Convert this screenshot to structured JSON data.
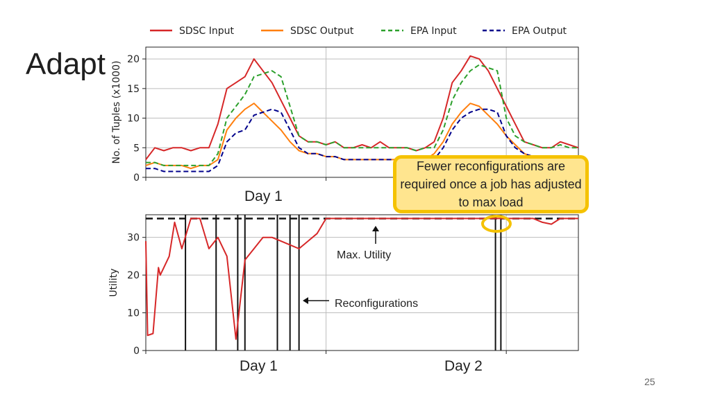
{
  "slide": {
    "title": "Adapt",
    "callout": "Fewer reconfigurations are required once a job has adjusted to max load",
    "top_day_label": "Day 1",
    "bottom_day_labels": [
      "Day 1",
      "Day 2"
    ],
    "page_number": "25"
  },
  "chart_data": [
    {
      "type": "line",
      "ylabel": "No. of Tuples (x1000)",
      "xlabel": "",
      "ylim": [
        0,
        22
      ],
      "yticks": [
        0,
        5,
        10,
        15,
        20
      ],
      "grid": true,
      "legend_position": "top",
      "x": [
        0.0,
        0.05,
        0.1,
        0.15,
        0.2,
        0.25,
        0.3,
        0.35,
        0.4,
        0.45,
        0.5,
        0.55,
        0.6,
        0.65,
        0.7,
        0.75,
        0.8,
        0.85,
        0.9,
        0.95,
        1.0,
        1.05,
        1.1,
        1.15,
        1.2,
        1.25,
        1.3,
        1.35,
        1.4,
        1.45,
        1.5,
        1.55,
        1.6,
        1.65,
        1.7,
        1.75,
        1.8,
        1.85,
        1.9,
        1.95,
        2.0,
        2.05,
        2.1,
        2.15,
        2.2,
        2.25,
        2.3,
        2.35,
        2.4
      ],
      "series": [
        {
          "name": "SDSC Input",
          "color": "#d62728",
          "dash": "solid",
          "values": [
            3,
            5,
            4.5,
            5,
            5,
            4.5,
            5,
            5,
            9,
            15,
            16,
            17,
            20,
            18,
            16,
            13,
            10,
            7,
            6,
            6,
            5.5,
            6,
            5,
            5,
            5.5,
            5,
            6,
            5,
            5,
            5,
            4.5,
            5,
            6,
            10,
            16,
            18,
            20.5,
            20,
            18,
            15,
            12,
            9,
            6,
            5.5,
            5,
            5,
            6,
            5.5,
            5
          ]
        },
        {
          "name": "SDSC Output",
          "color": "#ff7f0e",
          "dash": "solid",
          "values": [
            2,
            2.5,
            2,
            2,
            2,
            1.5,
            2,
            2,
            3,
            8,
            10,
            11.5,
            12.5,
            11,
            9.5,
            8,
            6,
            4.5,
            4,
            4,
            3.5,
            3.5,
            3,
            3,
            3,
            3,
            3,
            3,
            3,
            3,
            2.5,
            3,
            4,
            6,
            9,
            11,
            12.5,
            12,
            10.5,
            9,
            7,
            5.5,
            4,
            3.5,
            3,
            3,
            3.5,
            3,
            3
          ]
        },
        {
          "name": "EPA Input",
          "color": "#2ca02c",
          "dash": "dash",
          "values": [
            2.5,
            2.5,
            2,
            2,
            2,
            2,
            2,
            2,
            4,
            10,
            12,
            14,
            17,
            17.5,
            18,
            17,
            12,
            7,
            6,
            6,
            5.5,
            6,
            5,
            5,
            5,
            5,
            5,
            5,
            5,
            5,
            4.5,
            5,
            5,
            8,
            13,
            16,
            18,
            19,
            18.5,
            18,
            10,
            7,
            6,
            5.5,
            5,
            5,
            5.5,
            5,
            5
          ]
        },
        {
          "name": "EPA Output",
          "color": "#00008b",
          "dash": "dash",
          "values": [
            1.5,
            1.5,
            1,
            1,
            1,
            1,
            1,
            1,
            2,
            6,
            7.5,
            8,
            10.5,
            11,
            11.5,
            11,
            8,
            5,
            4,
            4,
            3.5,
            3.5,
            3,
            3,
            3,
            3,
            3,
            3,
            3,
            3,
            2.5,
            3,
            3,
            5,
            8,
            10,
            11,
            11.5,
            11.5,
            11,
            7,
            5,
            4,
            3.5,
            3.5,
            3,
            3.5,
            3,
            3
          ]
        }
      ]
    },
    {
      "type": "line",
      "ylabel": "Utility",
      "xlabel": "",
      "ylim": [
        0,
        36
      ],
      "yticks": [
        0,
        10,
        20,
        30
      ],
      "grid": true,
      "x": [
        0.0,
        0.01,
        0.04,
        0.07,
        0.08,
        0.1,
        0.13,
        0.16,
        0.2,
        0.25,
        0.3,
        0.35,
        0.4,
        0.45,
        0.5,
        0.55,
        0.6,
        0.65,
        0.7,
        0.75,
        0.8,
        0.85,
        0.9,
        0.95,
        1.0,
        1.05,
        1.1,
        1.15,
        1.2,
        1.25,
        1.3,
        1.35,
        1.4,
        1.45,
        1.5,
        1.55,
        1.6,
        1.65,
        1.7,
        1.75,
        1.8,
        1.85,
        1.9,
        1.95,
        2.0,
        2.05,
        2.1,
        2.15,
        2.2,
        2.25,
        2.3,
        2.35,
        2.4
      ],
      "series": [
        {
          "name": "Utility",
          "color": "#d62728",
          "dash": "solid",
          "values": [
            29,
            4,
            4.5,
            22,
            20,
            22,
            25,
            34,
            27,
            35,
            35,
            27,
            30,
            25,
            3,
            24,
            27,
            30,
            30,
            29,
            28,
            27,
            29,
            31,
            35,
            35,
            35,
            35,
            35,
            35,
            35,
            35,
            35,
            35,
            35,
            35,
            35,
            35,
            35,
            35,
            35,
            35,
            35,
            35,
            35,
            35,
            35,
            35,
            34,
            33.5,
            35,
            35,
            35
          ]
        }
      ],
      "max_utility": 35,
      "reconfigurations": [
        0.22,
        0.39,
        0.51,
        0.55,
        0.73,
        0.8,
        0.85,
        1.94,
        1.97
      ],
      "annotations": [
        "Max. Utility",
        "Reconfigurations"
      ]
    }
  ]
}
